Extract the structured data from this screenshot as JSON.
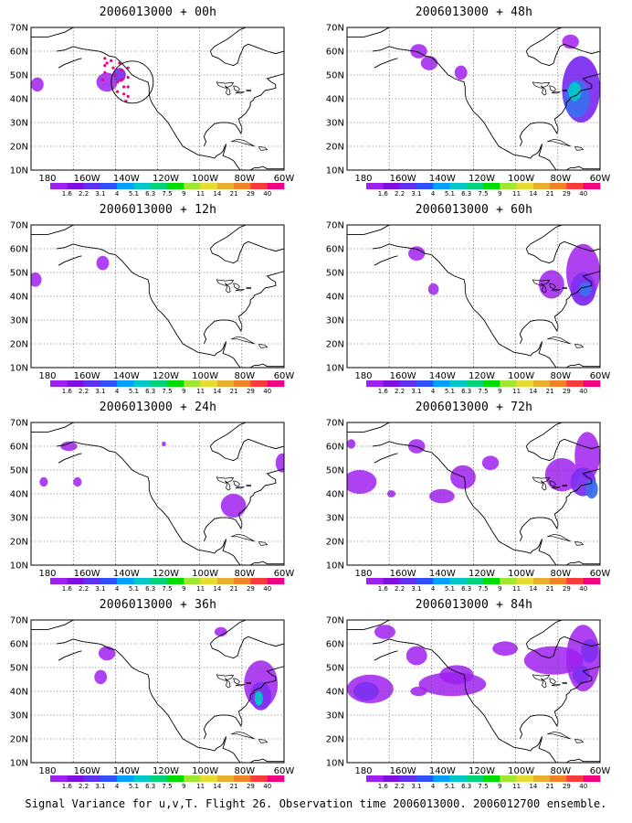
{
  "panels": [
    {
      "title": "2006013000 + 00h"
    },
    {
      "title": "2006013000 + 48h"
    },
    {
      "title": "2006013000 + 12h"
    },
    {
      "title": "2006013000 + 60h"
    },
    {
      "title": "2006013000 + 24h"
    },
    {
      "title": "2006013000 + 72h"
    },
    {
      "title": "2006013000 + 36h"
    },
    {
      "title": "2006013000 + 84h"
    }
  ],
  "axes": {
    "lat_labels": [
      "70N",
      "60N",
      "50N",
      "40N",
      "30N",
      "20N",
      "10N"
    ],
    "lon_labels": [
      "180",
      "160W",
      "140W",
      "120W",
      "100W",
      "80W",
      "60W"
    ]
  },
  "colorbar": {
    "labels": [
      "1.6",
      "2.2",
      "3.1",
      "4",
      "5.1",
      "6.3",
      "7.5",
      "9",
      "11",
      "14",
      "21",
      "29",
      "40"
    ],
    "colors": [
      "#a020f0",
      "#8010e0",
      "#6030f0",
      "#3050ff",
      "#00a0ff",
      "#00c8c8",
      "#00d27a",
      "#00dc00",
      "#a0e632",
      "#e6dc32",
      "#e6af2d",
      "#f08228",
      "#fa3c3c",
      "#f00082"
    ]
  },
  "colors": {
    "variance_low": "#a020f0",
    "variance_mid": "#7f2ff0",
    "variance_high": "#3c6ef0",
    "variance_peak": "#00c8c8",
    "observation_dots": "#f00082"
  },
  "caption": "Signal Variance for u,v,T. Flight 26. Observation time 2006013000. 2006012700 ensemble."
}
